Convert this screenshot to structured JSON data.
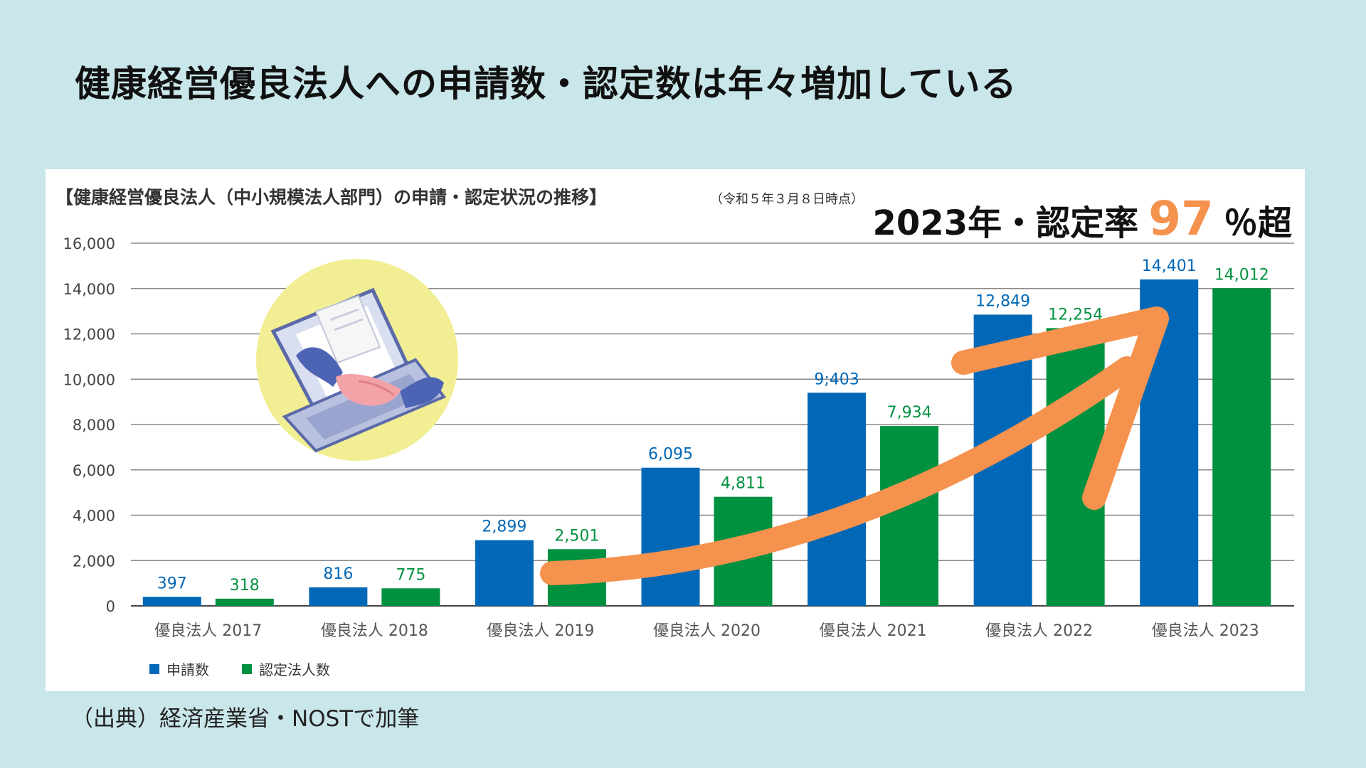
{
  "slide": {
    "title": "健康経営優良法人への申請数・認定数は年々増加している",
    "source": "（出典）経済産業省・NOSTで加筆"
  },
  "headline": {
    "prefix": "2023年・認定率",
    "value": "97",
    "suffix": "％超",
    "value_color": "#f5924e"
  },
  "chart_data": {
    "type": "bar",
    "title": "【健康経営優良法人（中小規模法人部門）の申請・認定状況の推移】",
    "note": "（令和５年３月８日時点）",
    "categories": [
      "優良法人 2017",
      "優良法人 2018",
      "優良法人 2019",
      "優良法人 2020",
      "優良法人 2021",
      "優良法人 2022",
      "優良法人 2023"
    ],
    "series": [
      {
        "name": "申請数",
        "color": "#0068b7",
        "values": [
          397,
          816,
          2899,
          6095,
          9403,
          12849,
          14401
        ],
        "labels": [
          "397",
          "816",
          "2,899",
          "6,095",
          "9;403",
          "12,849",
          "14,401"
        ]
      },
      {
        "name": "認定法人数",
        "color": "#009140",
        "values": [
          318,
          775,
          2501,
          4811,
          7934,
          12254,
          14012
        ],
        "labels": [
          "318",
          "775",
          "2,501",
          "4,811",
          "7,934",
          "12,254",
          "14,012"
        ]
      }
    ],
    "ylim": [
      0,
      16000
    ],
    "yticks": [
      "0",
      "2,000",
      "4,000",
      "6,000",
      "8,000",
      "10,000",
      "12,000",
      "14,000",
      "16,000"
    ],
    "grid": true,
    "legend_position": "bottom-left",
    "annotation": {
      "type": "arrow",
      "color": "#f5924e",
      "icon": "handshake-laptop-icon"
    }
  }
}
